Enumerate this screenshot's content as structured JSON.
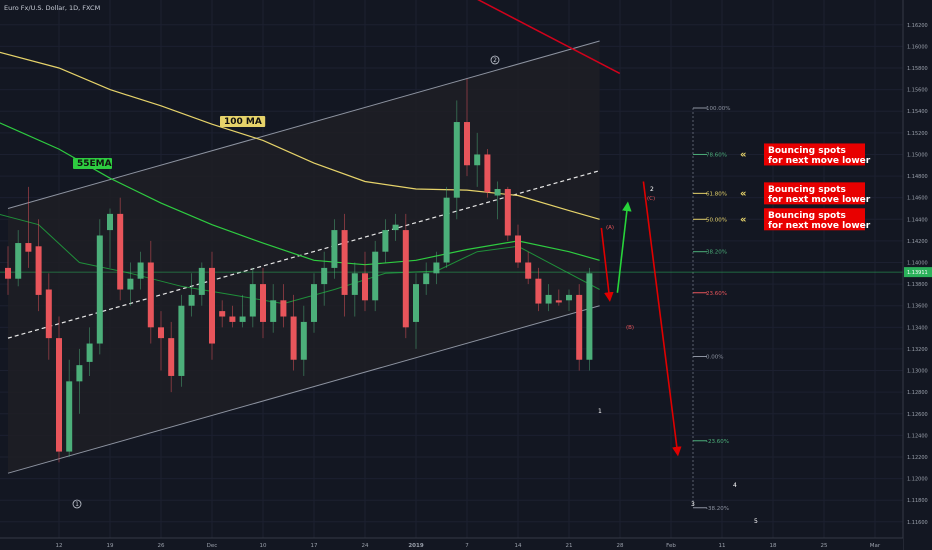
{
  "header": {
    "symbol_title": "Euro Fx/U.S. Dollar, 1D, FXCM"
  },
  "colors": {
    "background": "#131722",
    "bull": "#4caf7a",
    "bear": "#e8555b",
    "ma100": "#e6d36a",
    "ema55": "#2ecc40",
    "channel_fill": "#1e1f24",
    "price_badge": "#2bb15a",
    "callout_bg": "#e80000",
    "arrow_up": "#27d43a",
    "arrow_down": "#e00000"
  },
  "chart_data": {
    "type": "candlestick",
    "y_axis": {
      "min": 1.116,
      "max": 1.164,
      "tick_labels": [
        "1.16200",
        "1.16000",
        "1.15800",
        "1.15600",
        "1.15400",
        "1.15200",
        "1.15000",
        "1.14800",
        "1.14600",
        "1.14400",
        "1.14200",
        "1.14000",
        "1.13800",
        "1.13600",
        "1.13400",
        "1.13200",
        "1.13000",
        "1.12800",
        "1.12600",
        "1.12400",
        "1.12200",
        "1.12000",
        "1.11800",
        "1.11600"
      ],
      "tick_values": [
        1.162,
        1.16,
        1.158,
        1.156,
        1.154,
        1.152,
        1.15,
        1.148,
        1.146,
        1.144,
        1.142,
        1.14,
        1.138,
        1.136,
        1.134,
        1.132,
        1.13,
        1.128,
        1.126,
        1.124,
        1.122,
        1.12,
        1.118,
        1.116
      ]
    },
    "x_axis": {
      "tick_labels": [
        "12",
        "19",
        "26",
        "Dec",
        "10",
        "17",
        "24",
        "2019",
        "7",
        "14",
        "21",
        "28",
        "Feb",
        "11",
        "18",
        "25",
        "Mar"
      ],
      "tick_index": [
        5,
        10,
        15,
        20,
        25,
        30,
        35,
        40,
        45,
        50,
        55,
        60,
        65,
        70,
        75,
        80,
        85
      ]
    },
    "candles": [
      {
        "o": 1.1395,
        "h": 1.1415,
        "l": 1.137,
        "c": 1.1385
      },
      {
        "o": 1.1385,
        "h": 1.143,
        "l": 1.1378,
        "c": 1.1418
      },
      {
        "o": 1.1418,
        "h": 1.147,
        "l": 1.1395,
        "c": 1.141
      },
      {
        "o": 1.1415,
        "h": 1.144,
        "l": 1.1355,
        "c": 1.137
      },
      {
        "o": 1.1375,
        "h": 1.139,
        "l": 1.131,
        "c": 1.133
      },
      {
        "o": 1.133,
        "h": 1.135,
        "l": 1.1215,
        "c": 1.1225
      },
      {
        "o": 1.1225,
        "h": 1.131,
        "l": 1.122,
        "c": 1.129
      },
      {
        "o": 1.129,
        "h": 1.132,
        "l": 1.126,
        "c": 1.1305
      },
      {
        "o": 1.1308,
        "h": 1.134,
        "l": 1.1295,
        "c": 1.1325
      },
      {
        "o": 1.1325,
        "h": 1.144,
        "l": 1.1315,
        "c": 1.1425
      },
      {
        "o": 1.143,
        "h": 1.145,
        "l": 1.1395,
        "c": 1.1445
      },
      {
        "o": 1.1445,
        "h": 1.146,
        "l": 1.1365,
        "c": 1.1375
      },
      {
        "o": 1.1375,
        "h": 1.14,
        "l": 1.136,
        "c": 1.1385
      },
      {
        "o": 1.1385,
        "h": 1.141,
        "l": 1.1375,
        "c": 1.14
      },
      {
        "o": 1.14,
        "h": 1.142,
        "l": 1.1325,
        "c": 1.134
      },
      {
        "o": 1.134,
        "h": 1.1355,
        "l": 1.13,
        "c": 1.133
      },
      {
        "o": 1.133,
        "h": 1.1345,
        "l": 1.128,
        "c": 1.1295
      },
      {
        "o": 1.1295,
        "h": 1.137,
        "l": 1.1285,
        "c": 1.136
      },
      {
        "o": 1.136,
        "h": 1.139,
        "l": 1.135,
        "c": 1.137
      },
      {
        "o": 1.137,
        "h": 1.14,
        "l": 1.136,
        "c": 1.1395
      },
      {
        "o": 1.1395,
        "h": 1.141,
        "l": 1.131,
        "c": 1.1325
      },
      {
        "o": 1.1355,
        "h": 1.1365,
        "l": 1.134,
        "c": 1.135
      },
      {
        "o": 1.135,
        "h": 1.136,
        "l": 1.134,
        "c": 1.1345
      },
      {
        "o": 1.1345,
        "h": 1.137,
        "l": 1.134,
        "c": 1.135
      },
      {
        "o": 1.135,
        "h": 1.1395,
        "l": 1.134,
        "c": 1.138
      },
      {
        "o": 1.138,
        "h": 1.1395,
        "l": 1.133,
        "c": 1.1345
      },
      {
        "o": 1.1345,
        "h": 1.138,
        "l": 1.1335,
        "c": 1.1365
      },
      {
        "o": 1.1365,
        "h": 1.138,
        "l": 1.134,
        "c": 1.135
      },
      {
        "o": 1.135,
        "h": 1.137,
        "l": 1.13,
        "c": 1.131
      },
      {
        "o": 1.131,
        "h": 1.136,
        "l": 1.1295,
        "c": 1.1345
      },
      {
        "o": 1.1345,
        "h": 1.139,
        "l": 1.1335,
        "c": 1.138
      },
      {
        "o": 1.138,
        "h": 1.141,
        "l": 1.136,
        "c": 1.1395
      },
      {
        "o": 1.1395,
        "h": 1.144,
        "l": 1.1385,
        "c": 1.143
      },
      {
        "o": 1.143,
        "h": 1.1445,
        "l": 1.135,
        "c": 1.137
      },
      {
        "o": 1.137,
        "h": 1.14,
        "l": 1.135,
        "c": 1.139
      },
      {
        "o": 1.139,
        "h": 1.141,
        "l": 1.1355,
        "c": 1.1365
      },
      {
        "o": 1.1365,
        "h": 1.142,
        "l": 1.1355,
        "c": 1.141
      },
      {
        "o": 1.141,
        "h": 1.144,
        "l": 1.14,
        "c": 1.143
      },
      {
        "o": 1.143,
        "h": 1.1445,
        "l": 1.142,
        "c": 1.1435
      },
      {
        "o": 1.143,
        "h": 1.1445,
        "l": 1.133,
        "c": 1.134
      },
      {
        "o": 1.1345,
        "h": 1.139,
        "l": 1.132,
        "c": 1.138
      },
      {
        "o": 1.138,
        "h": 1.14,
        "l": 1.137,
        "c": 1.139
      },
      {
        "o": 1.139,
        "h": 1.141,
        "l": 1.138,
        "c": 1.14
      },
      {
        "o": 1.14,
        "h": 1.147,
        "l": 1.1395,
        "c": 1.146
      },
      {
        "o": 1.146,
        "h": 1.155,
        "l": 1.144,
        "c": 1.153
      },
      {
        "o": 1.153,
        "h": 1.157,
        "l": 1.148,
        "c": 1.149
      },
      {
        "o": 1.149,
        "h": 1.152,
        "l": 1.147,
        "c": 1.15
      },
      {
        "o": 1.15,
        "h": 1.1505,
        "l": 1.146,
        "c": 1.1465
      },
      {
        "o": 1.1462,
        "h": 1.1475,
        "l": 1.144,
        "c": 1.1468
      },
      {
        "o": 1.1468,
        "h": 1.147,
        "l": 1.142,
        "c": 1.1425
      },
      {
        "o": 1.1425,
        "h": 1.1435,
        "l": 1.1395,
        "c": 1.14
      },
      {
        "o": 1.14,
        "h": 1.141,
        "l": 1.138,
        "c": 1.1385
      },
      {
        "o": 1.1385,
        "h": 1.1395,
        "l": 1.1355,
        "c": 1.1362
      },
      {
        "o": 1.1362,
        "h": 1.138,
        "l": 1.1355,
        "c": 1.137
      },
      {
        "o": 1.1365,
        "h": 1.1375,
        "l": 1.136,
        "c": 1.1363
      },
      {
        "o": 1.1365,
        "h": 1.1375,
        "l": 1.1355,
        "c": 1.137
      },
      {
        "o": 1.137,
        "h": 1.138,
        "l": 1.13,
        "c": 1.131
      },
      {
        "o": 1.131,
        "h": 1.1395,
        "l": 1.13,
        "c": 1.139
      }
    ],
    "ma100": [
      {
        "i": -1,
        "v": 1.1595
      },
      {
        "i": 5,
        "v": 1.158
      },
      {
        "i": 10,
        "v": 1.156
      },
      {
        "i": 15,
        "v": 1.1545
      },
      {
        "i": 20,
        "v": 1.1528
      },
      {
        "i": 25,
        "v": 1.1513
      },
      {
        "i": 30,
        "v": 1.1492
      },
      {
        "i": 35,
        "v": 1.1475
      },
      {
        "i": 40,
        "v": 1.1468
      },
      {
        "i": 45,
        "v": 1.1467
      },
      {
        "i": 50,
        "v": 1.1462
      },
      {
        "i": 55,
        "v": 1.1448
      },
      {
        "i": 58,
        "v": 1.144
      }
    ],
    "ema55": [
      {
        "i": -1,
        "v": 1.153
      },
      {
        "i": 5,
        "v": 1.1505
      },
      {
        "i": 10,
        "v": 1.1478
      },
      {
        "i": 15,
        "v": 1.1455
      },
      {
        "i": 20,
        "v": 1.1435
      },
      {
        "i": 25,
        "v": 1.1418
      },
      {
        "i": 30,
        "v": 1.1402
      },
      {
        "i": 35,
        "v": 1.1398
      },
      {
        "i": 40,
        "v": 1.1402
      },
      {
        "i": 45,
        "v": 1.1412
      },
      {
        "i": 50,
        "v": 1.142
      },
      {
        "i": 55,
        "v": 1.141
      },
      {
        "i": 58,
        "v": 1.1402
      }
    ],
    "ema_fast": [
      {
        "i": -1,
        "v": 1.1445
      },
      {
        "i": 3,
        "v": 1.1435
      },
      {
        "i": 7,
        "v": 1.14
      },
      {
        "i": 12,
        "v": 1.139
      },
      {
        "i": 17,
        "v": 1.1378
      },
      {
        "i": 22,
        "v": 1.137
      },
      {
        "i": 27,
        "v": 1.1362
      },
      {
        "i": 32,
        "v": 1.1375
      },
      {
        "i": 37,
        "v": 1.139
      },
      {
        "i": 42,
        "v": 1.1392
      },
      {
        "i": 46,
        "v": 1.141
      },
      {
        "i": 50,
        "v": 1.1415
      },
      {
        "i": 54,
        "v": 1.1395
      },
      {
        "i": 58,
        "v": 1.1375
      }
    ],
    "channel": {
      "lower": [
        {
          "i": 0,
          "v": 1.1205
        },
        {
          "i": 58,
          "v": 1.136
        }
      ],
      "upper": [
        {
          "i": 0,
          "v": 1.145
        },
        {
          "i": 58,
          "v": 1.1605
        }
      ],
      "mid_dashed": [
        {
          "i": 0,
          "v": 1.133
        },
        {
          "i": 58,
          "v": 1.1485
        }
      ]
    },
    "red_trendline": [
      {
        "i": 37,
        "v": 1.166
      },
      {
        "i": 59,
        "v": 1.1575
      }
    ],
    "current_price": {
      "value": 1.13911,
      "label": "1.13911"
    },
    "fib_levels": [
      {
        "label": "100.00%",
        "value": 1.1543
      },
      {
        "label": "78.60%",
        "value": 1.15
      },
      {
        "label": "61.80%",
        "value": 1.1464
      },
      {
        "label": "50.00%",
        "value": 1.144
      },
      {
        "label": "38.20%",
        "value": 1.141
      },
      {
        "label": "23.60%",
        "value": 1.1372
      },
      {
        "label": "0.00%",
        "value": 1.1313
      },
      {
        "label": "-23.60%",
        "value": 1.1235
      },
      {
        "label": "-38.20%",
        "value": 1.1173
      }
    ],
    "annotations": {
      "ma100_label": "100 MA",
      "ema55_label": "55EMA",
      "callout_line1": "Bouncing spots",
      "callout_line2": "for next move lower",
      "wave_circle_1": "1",
      "wave_circle_2": "2",
      "wave_A": "(A)",
      "wave_B": "(B)",
      "wave_C": "(C)",
      "wave_num_1": "1",
      "wave_num_2": "2",
      "wave_num_3": "3",
      "wave_num_4": "4",
      "wave_num_5": "5"
    }
  }
}
